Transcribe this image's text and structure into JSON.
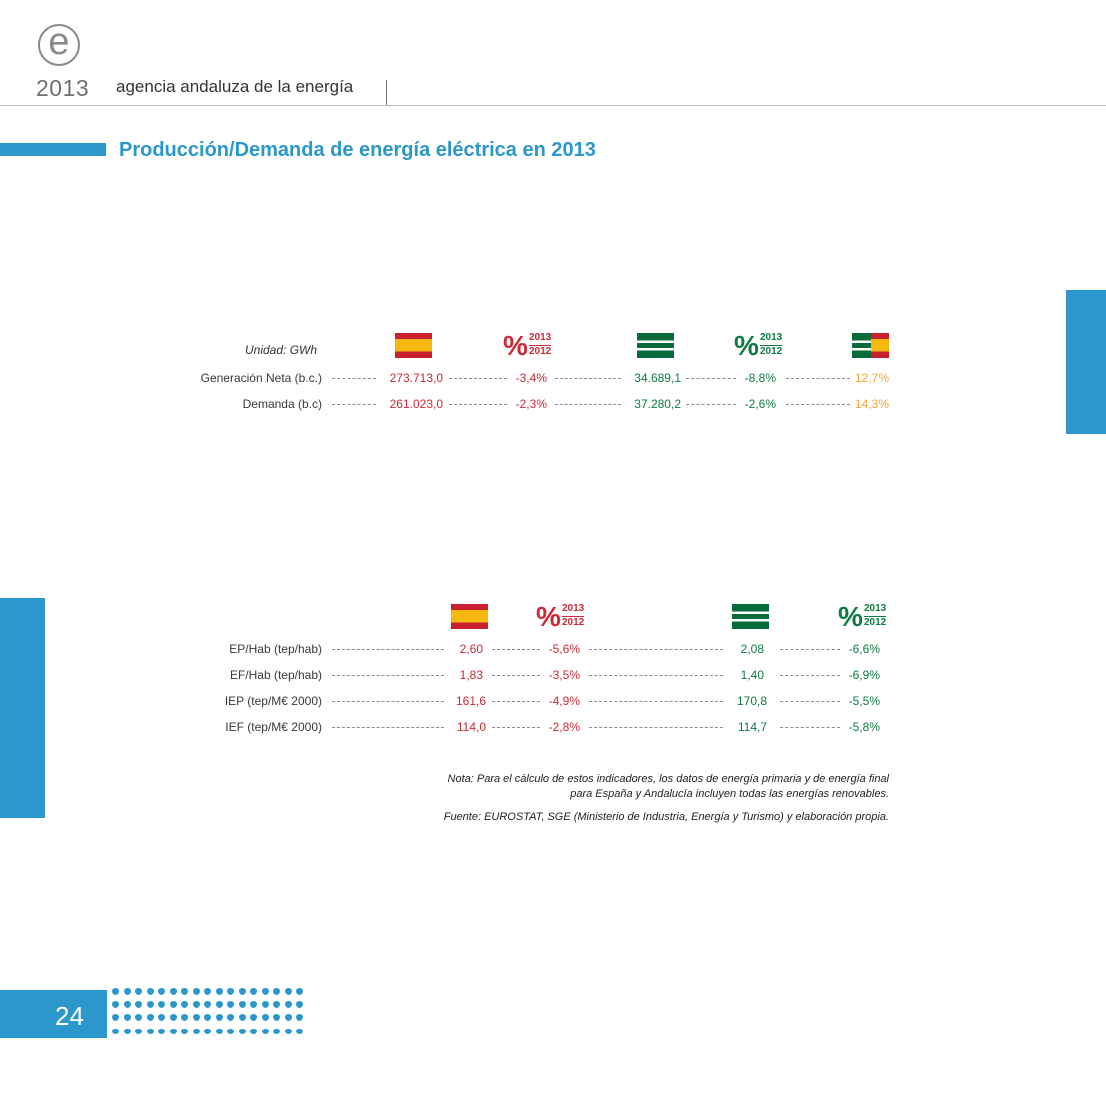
{
  "header": {
    "logo_letter": "e",
    "year": "2013",
    "agency": "agencia andaluza de la energía"
  },
  "title": "Producción/Demanda de energía eléctrica en 2013",
  "table1": {
    "unit_label": "Unidad: GWh",
    "pct_top": "2013",
    "pct_bottom": "2012",
    "pct_symbol": "%",
    "rows": [
      {
        "label": "Generación Neta (b.c.)",
        "spain": "273.713,0",
        "spain_pct": "-3,4%",
        "andalucia": "34.689,1",
        "andalucia_pct": "-8,8%",
        "share": "12,7%"
      },
      {
        "label": "Demanda (b.c)",
        "spain": "261.023,0",
        "spain_pct": "-2,3%",
        "andalucia": "37.280,2",
        "andalucia_pct": "-2,6%",
        "share": "14,3%"
      }
    ]
  },
  "table2": {
    "pct_top": "2013",
    "pct_bottom": "2012",
    "pct_symbol": "%",
    "rows": [
      {
        "label": "EP/Hab (tep/hab)",
        "spain": "2,60",
        "spain_pct": "-5,6%",
        "andalucia": "2,08",
        "andalucia_pct": "-6,6%"
      },
      {
        "label": "EF/Hab (tep/hab)",
        "spain": "1,83",
        "spain_pct": "-3,5%",
        "andalucia": "1,40",
        "andalucia_pct": "-6,9%"
      },
      {
        "label": "IEP (tep/M€ 2000)",
        "spain": "161,6",
        "spain_pct": "-4,9%",
        "andalucia": "170,8",
        "andalucia_pct": "-5,5%"
      },
      {
        "label": "IEF (tep/M€ 2000)",
        "spain": "114,0",
        "spain_pct": "-2,8%",
        "andalucia": "114,7",
        "andalucia_pct": "-5,8%"
      }
    ]
  },
  "notes": {
    "nota_line1": "Nota: Para el cálculo de estos indicadores, los datos de energía primaria y de energía final",
    "nota_line2": "para España y Andalucía incluyen todas las energías renovables.",
    "fuente": "Fuente: EUROSTAT, SGE (Ministerio de Industria, Energía y Turismo) y elaboración propia."
  },
  "colors": {
    "accent_blue": "#2b97cb",
    "spain_red": "#cc2a36",
    "andalucia_green": "#0f7a44",
    "share_orange": "#f4a53a"
  },
  "footer": {
    "page_number": "24"
  }
}
